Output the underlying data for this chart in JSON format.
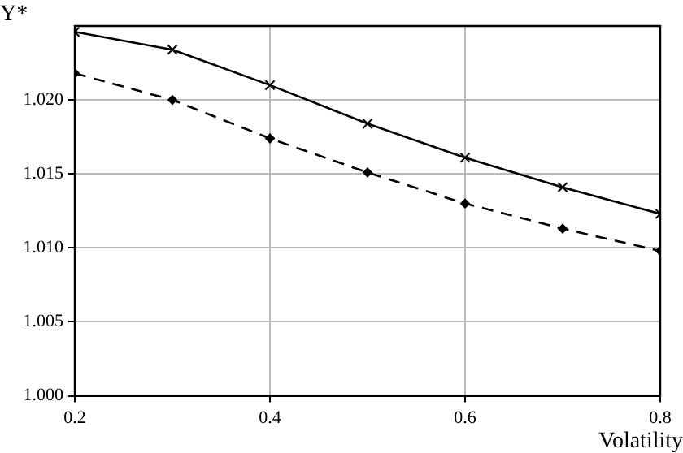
{
  "chart_data": {
    "type": "line",
    "xlabel": "Volatility",
    "ylabel": "Y*",
    "x": [
      0.2,
      0.3,
      0.4,
      0.5,
      0.6,
      0.7,
      0.8
    ],
    "series": [
      {
        "color": "#000000",
        "marker": "cross",
        "line_style": "solid",
        "values": [
          1.0246,
          1.0234,
          1.021,
          1.0184,
          1.0161,
          1.0141,
          1.0123
        ]
      },
      {
        "color": "#000000",
        "marker": "diamond",
        "line_style": "dashed",
        "values": [
          1.0218,
          1.02,
          1.0174,
          1.0151,
          1.013,
          1.0113,
          1.0098
        ]
      }
    ],
    "xlim": [
      0.2,
      0.8
    ],
    "xticks": [
      0.2,
      0.4,
      0.6,
      0.8
    ],
    "ylim": [
      1.0,
      1.025
    ],
    "yticks": [
      {
        "value": 1.0,
        "label": "1.000"
      },
      {
        "value": 1.005,
        "label": "1.005"
      },
      {
        "value": 1.01,
        "label": "1.010"
      },
      {
        "value": 1.015,
        "label": "1.015"
      },
      {
        "value": 1.02,
        "label": "1.020"
      }
    ],
    "grid": true,
    "legend": false
  }
}
